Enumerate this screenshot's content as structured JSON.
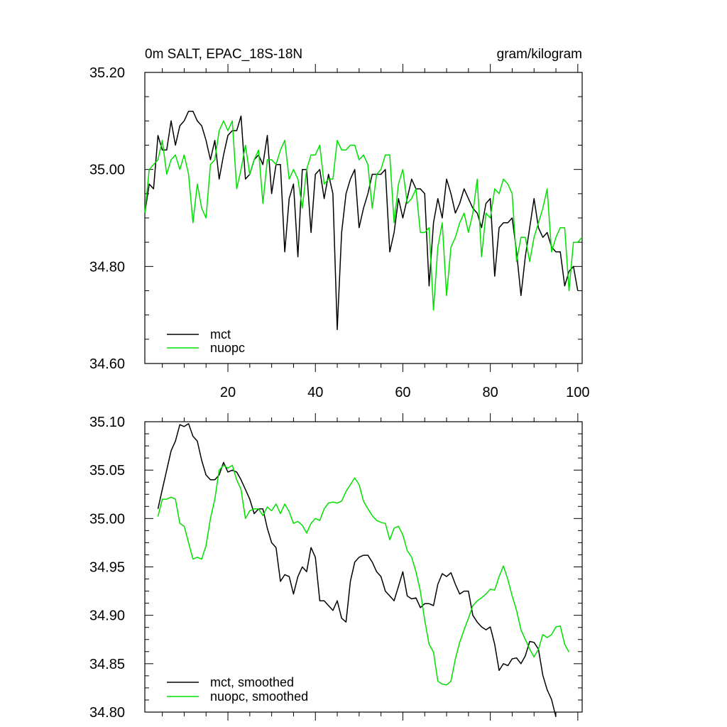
{
  "chart_data": [
    {
      "type": "line",
      "title": "0m SALT, EPAC_18S-18N",
      "units": "gram/kilogram",
      "xlabel": "",
      "ylabel": "",
      "xlim": [
        1,
        101
      ],
      "ylim": [
        34.6,
        35.2
      ],
      "xticks": [
        20,
        40,
        60,
        80,
        100
      ],
      "xtick_labels": [
        "20",
        "40",
        "60",
        "80",
        "100"
      ],
      "yticks": [
        34.6,
        34.8,
        35.0,
        35.2
      ],
      "ytick_labels": [
        "34.60",
        "34.80",
        "35.00",
        "35.20"
      ],
      "grid": false,
      "legend_position": "bottom-left",
      "series": [
        {
          "name": "mct",
          "color": "#000000",
          "values": [
            34.91,
            34.97,
            34.96,
            35.07,
            35.04,
            35.04,
            35.1,
            35.05,
            35.09,
            35.1,
            35.12,
            35.12,
            35.1,
            35.09,
            35.06,
            35.02,
            35.06,
            34.98,
            35.03,
            35.07,
            35.08,
            35.08,
            35.11,
            34.98,
            34.99,
            35.02,
            35.03,
            35.01,
            35.07,
            34.95,
            35.01,
            35.01,
            34.83,
            34.94,
            34.97,
            34.82,
            35.0,
            35.0,
            34.87,
            34.99,
            35.0,
            34.94,
            34.99,
            34.95,
            34.67,
            34.87,
            34.95,
            34.98,
            35.0,
            34.88,
            34.92,
            34.95,
            34.99,
            34.99,
            34.99,
            35.0,
            34.83,
            34.87,
            34.94,
            34.9,
            34.94,
            34.98,
            34.96,
            34.96,
            34.95,
            34.76,
            34.89,
            34.94,
            34.9,
            34.98,
            34.95,
            34.91,
            34.93,
            34.96,
            34.94,
            34.92,
            34.91,
            34.88,
            34.93,
            34.94,
            34.78,
            34.88,
            34.89,
            34.89,
            34.9,
            34.83,
            34.74,
            34.82,
            34.88,
            34.94,
            34.88,
            34.86,
            34.87,
            34.84,
            34.83,
            34.83,
            34.76,
            34.79,
            34.8,
            34.75
          ]
        },
        {
          "name": "nuopc",
          "color": "#00e000",
          "values": [
            34.91,
            35.0,
            35.01,
            35.02,
            35.06,
            34.99,
            35.02,
            35.03,
            35.0,
            35.03,
            34.99,
            34.89,
            34.97,
            34.92,
            34.9,
            35.01,
            35.02,
            35.08,
            35.1,
            35.08,
            35.1,
            34.96,
            35.0,
            35.05,
            34.99,
            35.02,
            35.04,
            34.93,
            35.02,
            35.02,
            35.01,
            35.04,
            35.06,
            34.98,
            35.0,
            34.98,
            34.92,
            35.0,
            35.03,
            35.03,
            35.05,
            34.97,
            34.98,
            34.98,
            35.06,
            35.04,
            35.04,
            35.05,
            35.05,
            35.02,
            35.03,
            35.01,
            34.92,
            34.99,
            35.0,
            35.03,
            35.03,
            34.89,
            34.97,
            35.0,
            34.93,
            34.94,
            34.96,
            34.87,
            34.87,
            34.88,
            34.71,
            34.84,
            34.89,
            34.74,
            34.84,
            34.86,
            34.89,
            34.91,
            34.87,
            34.91,
            34.98,
            34.82,
            34.91,
            34.9,
            34.96,
            34.95,
            34.98,
            34.97,
            34.95,
            34.81,
            34.86,
            34.86,
            34.81,
            34.86,
            34.89,
            34.92,
            34.96,
            34.83,
            34.86,
            34.88,
            34.88,
            34.75,
            34.85,
            34.85,
            34.86
          ]
        }
      ]
    },
    {
      "type": "line",
      "title": "",
      "xlabel": "",
      "ylabel": "",
      "xlim": [
        1,
        101
      ],
      "ylim": [
        34.8,
        35.1
      ],
      "xticks": [
        20,
        40,
        60,
        80,
        100
      ],
      "yticks": [
        34.8,
        34.85,
        34.9,
        34.95,
        35.0,
        35.05,
        35.1
      ],
      "ytick_labels": [
        "34.80",
        "34.85",
        "34.90",
        "34.95",
        "35.00",
        "35.05",
        "35.10"
      ],
      "grid": false,
      "legend_position": "bottom-left",
      "series": [
        {
          "name": "mct, smoothed",
          "color": "#000000",
          "x_start": 4,
          "values": [
            35.01,
            35.03,
            35.05,
            35.07,
            35.08,
            35.097,
            35.095,
            35.098,
            35.085,
            35.08,
            35.06,
            35.045,
            35.04,
            35.04,
            35.045,
            35.058,
            35.048,
            35.05,
            35.048,
            35.04,
            35.03,
            35.02,
            35.005,
            35.01,
            35.01,
            34.99,
            34.975,
            34.97,
            34.935,
            34.942,
            34.94,
            34.922,
            34.94,
            34.95,
            34.945,
            34.97,
            34.96,
            34.915,
            34.915,
            34.91,
            34.905,
            34.915,
            34.897,
            34.893,
            34.935,
            34.955,
            34.96,
            34.962,
            34.962,
            34.955,
            34.945,
            34.94,
            34.925,
            34.92,
            34.915,
            34.93,
            34.945,
            34.92,
            34.917,
            34.918,
            34.908,
            34.912,
            34.912,
            34.91,
            34.932,
            34.943,
            34.94,
            34.944,
            34.932,
            34.922,
            34.925,
            34.925,
            34.9,
            34.893,
            34.888,
            34.885,
            34.888,
            34.87,
            34.843,
            34.85,
            34.848,
            34.855,
            34.856,
            34.85,
            34.858,
            34.873,
            34.872,
            34.865,
            34.838,
            34.823,
            34.813,
            34.795
          ]
        },
        {
          "name": "nuopc, smoothed",
          "color": "#00e000",
          "x_start": 4,
          "values": [
            35.002,
            35.02,
            35.02,
            35.022,
            35.02,
            34.995,
            34.992,
            34.975,
            34.958,
            34.96,
            34.958,
            34.972,
            35.0,
            35.02,
            35.05,
            35.055,
            35.052,
            35.055,
            35.04,
            35.03,
            35.0,
            35.008,
            35.01,
            35.01,
            35.003,
            35.012,
            35.008,
            35.015,
            35.005,
            35.015,
            35.007,
            34.995,
            34.997,
            34.993,
            34.985,
            34.995,
            35.0,
            34.998,
            35.01,
            35.016,
            35.017,
            35.016,
            35.018,
            35.028,
            35.035,
            35.042,
            35.035,
            35.018,
            35.01,
            35.003,
            34.998,
            34.996,
            34.995,
            34.978,
            34.99,
            34.992,
            34.983,
            34.967,
            34.96,
            34.945,
            34.925,
            34.895,
            34.87,
            34.862,
            34.832,
            34.829,
            34.828,
            34.832,
            34.855,
            34.872,
            34.885,
            34.897,
            34.91,
            34.915,
            34.918,
            34.922,
            34.927,
            34.926,
            34.94,
            34.951,
            34.937,
            34.92,
            34.905,
            34.885,
            34.875,
            34.865,
            34.857,
            34.865,
            34.88,
            34.877,
            34.88,
            34.888,
            34.889,
            34.87,
            34.862
          ]
        }
      ]
    }
  ]
}
